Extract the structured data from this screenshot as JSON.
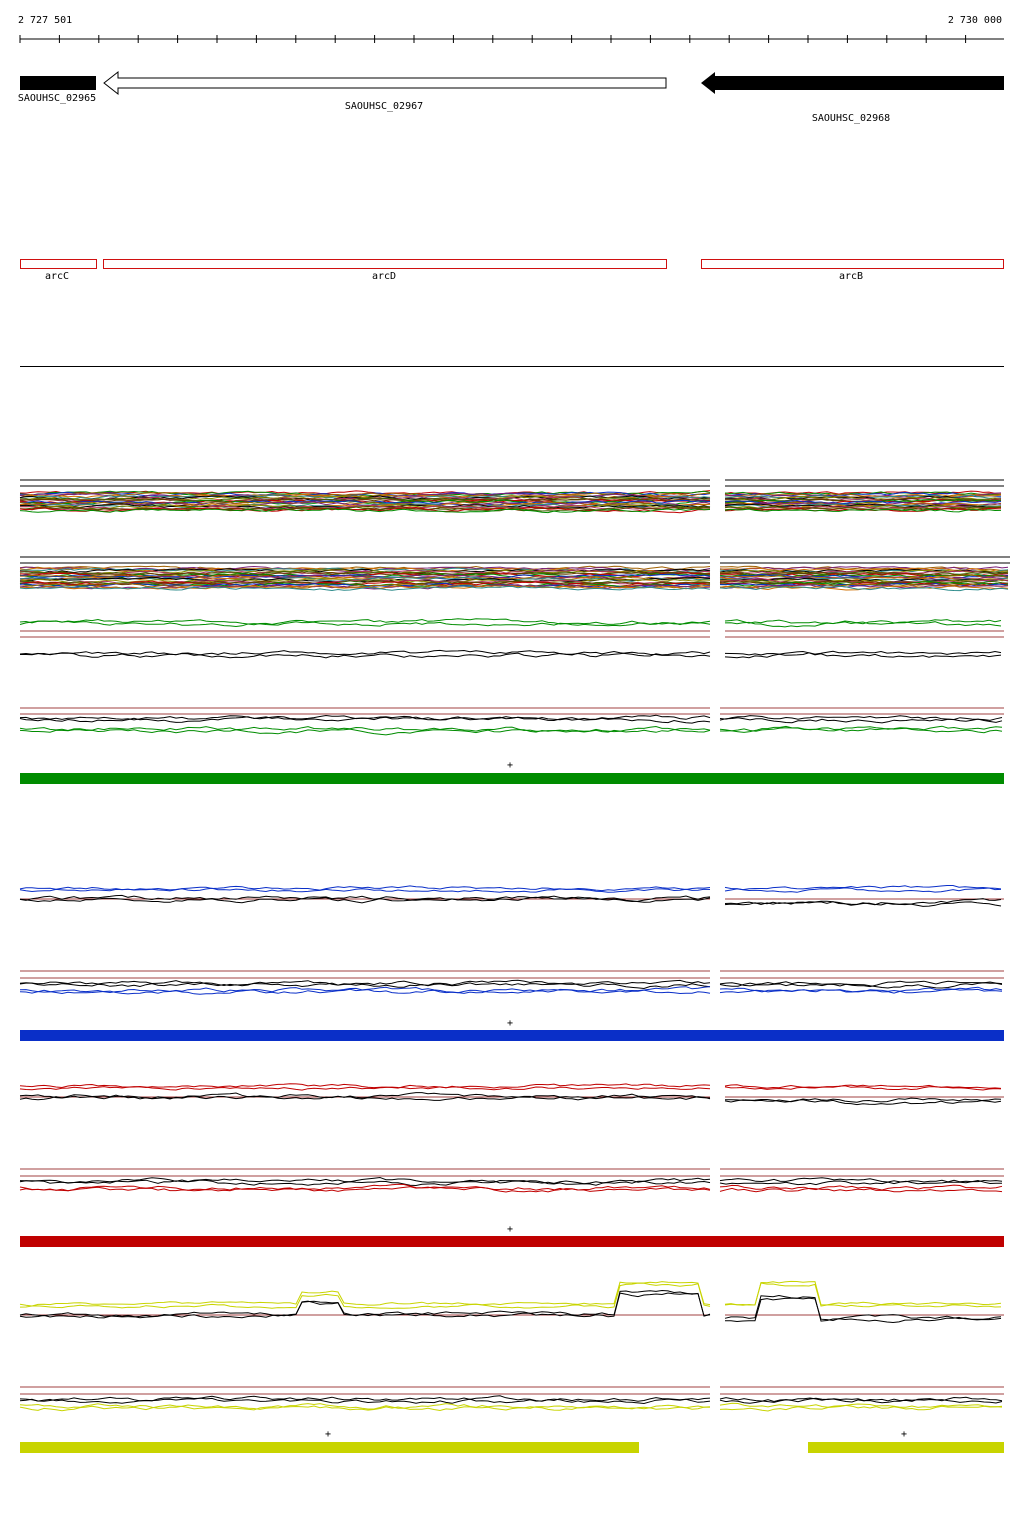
{
  "ruler": {
    "start_label": "2 727 501",
    "end_label": "2 730 000"
  },
  "genes": [
    {
      "label": "SAOUHSC_02965",
      "filled": true
    },
    {
      "label": "SAOUHSC_02967",
      "filled": false
    },
    {
      "label": "SAOUHSC_02968",
      "filled": true
    }
  ],
  "operon_features": [
    {
      "label": "arcC"
    },
    {
      "label": "arcD"
    },
    {
      "label": "arcB"
    }
  ],
  "strand_markers": {
    "green": "+",
    "blue": "+",
    "red": "+",
    "yellow_left": "+",
    "yellow_right": "+"
  },
  "colors": {
    "gene_outline": "#d01010",
    "green": "#008c00",
    "blue": "#0a2fc8",
    "red": "#c00000",
    "yellow": "#c8d400",
    "thin_red": "#a04040",
    "black": "#000000"
  }
}
